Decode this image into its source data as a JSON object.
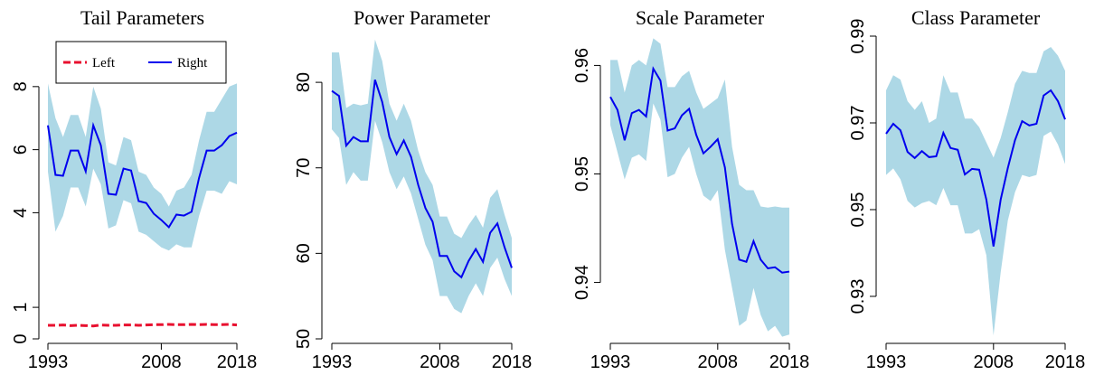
{
  "chart_data": [
    {
      "type": "line",
      "title": "Tail Parameters",
      "x": [
        1993,
        1994,
        1995,
        1996,
        1997,
        1998,
        1999,
        2000,
        2001,
        2002,
        2003,
        2004,
        2005,
        2006,
        2007,
        2008,
        2009,
        2010,
        2011,
        2012,
        2013,
        2014,
        2015,
        2016,
        2017,
        2018
      ],
      "xlim": [
        1993,
        2018
      ],
      "xticks": [
        1993,
        2008,
        2018
      ],
      "ylim": [
        0,
        9.6
      ],
      "yticks": [
        0,
        1,
        4,
        6,
        8
      ],
      "legend": "top",
      "series": [
        {
          "name": "Left",
          "color": "#e8102f",
          "dash": true,
          "values": [
            0.43,
            0.43,
            0.44,
            0.42,
            0.43,
            0.42,
            0.41,
            0.44,
            0.43,
            0.43,
            0.44,
            0.44,
            0.43,
            0.44,
            0.45,
            0.45,
            0.46,
            0.45,
            0.45,
            0.46,
            0.45,
            0.46,
            0.45,
            0.45,
            0.46,
            0.44
          ]
        },
        {
          "name": "Right",
          "color": "#0000ee",
          "band_color": "#add8e6",
          "values": [
            6.77,
            5.2,
            5.17,
            5.97,
            5.97,
            5.31,
            6.77,
            6.14,
            4.6,
            4.57,
            5.4,
            5.34,
            4.37,
            4.31,
            3.97,
            3.77,
            3.54,
            3.94,
            3.91,
            4.03,
            5.11,
            5.97,
            5.97,
            6.14,
            6.43,
            6.54
          ],
          "upper": [
            8.1,
            7.0,
            6.4,
            7.1,
            7.1,
            6.4,
            8.0,
            7.3,
            5.6,
            5.5,
            6.4,
            6.3,
            5.3,
            5.2,
            4.8,
            4.6,
            4.2,
            4.7,
            4.8,
            5.2,
            6.3,
            7.2,
            7.2,
            7.6,
            8.0,
            8.1
          ],
          "lower": [
            5.3,
            3.4,
            3.9,
            4.8,
            4.8,
            4.2,
            5.4,
            4.9,
            3.5,
            3.6,
            4.4,
            4.3,
            3.4,
            3.3,
            3.1,
            2.9,
            2.8,
            3.0,
            2.9,
            2.9,
            3.9,
            4.7,
            4.7,
            4.6,
            5.0,
            4.9
          ]
        }
      ]
    },
    {
      "type": "line",
      "title": "Power Parameter",
      "x": [
        1993,
        1994,
        1995,
        1996,
        1997,
        1998,
        1999,
        2000,
        2001,
        2002,
        2003,
        2004,
        2005,
        2006,
        2007,
        2008,
        2009,
        2010,
        2011,
        2012,
        2013,
        2014,
        2015,
        2016,
        2017,
        2018
      ],
      "xlim": [
        1993,
        2018
      ],
      "xticks": [
        1993,
        2008,
        2018
      ],
      "ylim": [
        50,
        85.4
      ],
      "yticks": [
        50,
        60,
        70,
        80
      ],
      "series": [
        {
          "color": "#0000ee",
          "band_color": "#add8e6",
          "values": [
            79.0,
            78.4,
            72.6,
            73.6,
            73.1,
            73.1,
            80.3,
            77.7,
            73.6,
            71.6,
            73.2,
            71.3,
            68.0,
            65.3,
            63.7,
            59.7,
            59.7,
            57.9,
            57.2,
            59.1,
            60.5,
            59.0,
            62.4,
            63.5,
            60.7,
            58.3
          ],
          "upper": [
            83.5,
            83.5,
            77.0,
            77.5,
            77.3,
            77.5,
            85.0,
            82.5,
            77.5,
            75.5,
            77.5,
            75.5,
            72.0,
            69.5,
            68.0,
            64.3,
            64.3,
            62.3,
            61.8,
            63.3,
            64.5,
            63.0,
            66.5,
            67.5,
            64.5,
            61.8
          ],
          "lower": [
            74.5,
            73.5,
            68.0,
            69.5,
            68.5,
            68.5,
            75.5,
            73.0,
            69.5,
            67.5,
            69.0,
            67.0,
            64.0,
            61.0,
            59.2,
            55.0,
            55.0,
            53.5,
            53.0,
            55.0,
            56.5,
            55.0,
            58.3,
            59.5,
            57.0,
            55.0
          ]
        }
      ]
    },
    {
      "type": "line",
      "title": "Scale Parameter",
      "x": [
        1993,
        1994,
        1995,
        1996,
        1997,
        1998,
        1999,
        2000,
        2001,
        2002,
        2003,
        2004,
        2005,
        2006,
        2007,
        2008,
        2009,
        2010,
        2011,
        2012,
        2013,
        2014,
        2015,
        2016,
        2017,
        2018
      ],
      "xlim": [
        1993,
        2018
      ],
      "xticks": [
        1993,
        2008,
        2018
      ],
      "ylim": [
        0.9348,
        0.9627
      ],
      "yticks": [
        0.94,
        0.95,
        0.96
      ],
      "series": [
        {
          "color": "#0000ee",
          "band_color": "#add8e6",
          "values": [
            0.9571,
            0.9559,
            0.9531,
            0.9556,
            0.9559,
            0.9553,
            0.9597,
            0.9586,
            0.954,
            0.9542,
            0.9554,
            0.956,
            0.9536,
            0.9519,
            0.9525,
            0.9532,
            0.9506,
            0.9454,
            0.9421,
            0.9419,
            0.9438,
            0.9421,
            0.9413,
            0.9414,
            0.9409,
            0.941
          ],
          "upper": [
            0.9605,
            0.9605,
            0.9575,
            0.96,
            0.9605,
            0.96,
            0.9625,
            0.962,
            0.958,
            0.958,
            0.959,
            0.9595,
            0.9575,
            0.956,
            0.9565,
            0.957,
            0.9587,
            0.9525,
            0.949,
            0.9485,
            0.9485,
            0.947,
            0.9469,
            0.947,
            0.9469,
            0.9469
          ],
          "lower": [
            0.9545,
            0.952,
            0.9495,
            0.9515,
            0.9518,
            0.9512,
            0.9565,
            0.955,
            0.9497,
            0.95,
            0.9515,
            0.9525,
            0.95,
            0.948,
            0.9475,
            0.9485,
            0.943,
            0.9395,
            0.936,
            0.9365,
            0.9395,
            0.937,
            0.9355,
            0.936,
            0.935,
            0.9352
          ]
        }
      ]
    },
    {
      "type": "line",
      "title": "Class Parameter",
      "x": [
        1993,
        1994,
        1995,
        1996,
        1997,
        1998,
        1999,
        2000,
        2001,
        2002,
        2003,
        2004,
        2005,
        2006,
        2007,
        2008,
        2009,
        2010,
        2011,
        2012,
        2013,
        2014,
        2015,
        2016,
        2017,
        2018
      ],
      "xlim": [
        1993,
        2018
      ],
      "xticks": [
        1993,
        2008,
        2018
      ],
      "ylim": [
        0.9202,
        0.99
      ],
      "yticks": [
        0.93,
        0.95,
        0.97,
        0.99
      ],
      "series": [
        {
          "color": "#0000ee",
          "band_color": "#add8e6",
          "values": [
            0.9675,
            0.9698,
            0.9683,
            0.9633,
            0.9619,
            0.9635,
            0.9621,
            0.9623,
            0.9677,
            0.9642,
            0.9638,
            0.9581,
            0.9594,
            0.9592,
            0.9523,
            0.9415,
            0.9523,
            0.9596,
            0.966,
            0.9704,
            0.9694,
            0.9698,
            0.9763,
            0.9775,
            0.975,
            0.9708
          ],
          "upper": [
            0.9775,
            0.981,
            0.98,
            0.975,
            0.973,
            0.975,
            0.97,
            0.971,
            0.981,
            0.977,
            0.977,
            0.971,
            0.971,
            0.969,
            0.9655,
            0.962,
            0.9665,
            0.9725,
            0.979,
            0.982,
            0.9815,
            0.9815,
            0.9865,
            0.9875,
            0.9855,
            0.982
          ],
          "lower": [
            0.958,
            0.9595,
            0.957,
            0.952,
            0.9505,
            0.9515,
            0.952,
            0.951,
            0.955,
            0.951,
            0.951,
            0.9445,
            0.9445,
            0.9455,
            0.9395,
            0.921,
            0.9355,
            0.9475,
            0.954,
            0.958,
            0.9575,
            0.958,
            0.967,
            0.968,
            0.965,
            0.9605
          ]
        }
      ]
    }
  ]
}
